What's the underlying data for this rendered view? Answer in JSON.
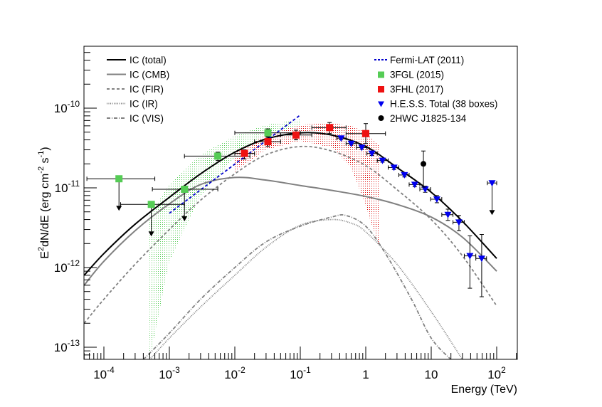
{
  "chart_data": {
    "type": "scatter",
    "title": "",
    "xlabel": "Energy (TeV)",
    "ylabel": "E2dN/dE (erg cm-2 s-1)",
    "ylabel_parts": {
      "base1": "E",
      "sup1": "2",
      "mid": "dN/dE (erg cm",
      "sup2": "-2",
      "mid2": " s",
      "sup3": "-1",
      "end": ")"
    },
    "xscale": "log",
    "yscale": "log",
    "xlim": [
      5e-05,
      200
    ],
    "ylim": [
      7e-14,
      6e-10
    ],
    "grid": false,
    "x_ticks": [
      {
        "value": 0.0001,
        "base": "10",
        "exp": "-4"
      },
      {
        "value": 0.001,
        "base": "10",
        "exp": "-3"
      },
      {
        "value": 0.01,
        "base": "10",
        "exp": "-2"
      },
      {
        "value": 0.1,
        "base": "10",
        "exp": "-1"
      },
      {
        "value": 1,
        "base": "1",
        "exp": ""
      },
      {
        "value": 10,
        "base": "10",
        "exp": ""
      },
      {
        "value": 100,
        "base": "10",
        "exp": "2"
      }
    ],
    "y_ticks": [
      {
        "value": 1e-10,
        "base": "10",
        "exp": "-10"
      },
      {
        "value": 1e-11,
        "base": "10",
        "exp": "-11"
      },
      {
        "value": 1e-12,
        "base": "10",
        "exp": "-12"
      },
      {
        "value": 1e-13,
        "base": "10",
        "exp": "-13"
      }
    ],
    "legend_left": [
      {
        "label": "IC (total)",
        "style": "solid",
        "color": "#000000"
      },
      {
        "label": "IC (CMB)",
        "style": "solid",
        "color": "#808080"
      },
      {
        "label": "IC (FIR)",
        "style": "dashed",
        "color": "#808080"
      },
      {
        "label": "IC (IR)",
        "style": "dotted",
        "color": "#808080"
      },
      {
        "label": "IC (VIS)",
        "style": "dashdot",
        "color": "#808080"
      }
    ],
    "legend_right": [
      {
        "label": "Fermi-LAT (2011)",
        "marker": "dashed-line",
        "color": "#0000cc"
      },
      {
        "label": "3FGL (2015)",
        "marker": "square",
        "color": "#55cc55"
      },
      {
        "label": "3FHL (2017)",
        "marker": "square",
        "color": "#ee1111"
      },
      {
        "label": "H.E.S.S. Total (38 boxes)",
        "marker": "triangle-down",
        "color": "#0000ee"
      },
      {
        "label": "2HWC J1825-134",
        "marker": "circle",
        "color": "#000000"
      }
    ],
    "legend_placement": "top",
    "models": [
      {
        "name": "IC (total)",
        "color": "#000000",
        "style": "solid",
        "x": [
          5e-05,
          0.0001,
          0.0003,
          0.001,
          0.003,
          0.01,
          0.03,
          0.1,
          0.3,
          1,
          3,
          10,
          30,
          100
        ],
        "y": [
          8e-13,
          1.5e-12,
          3.5e-12,
          7.6e-12,
          1.5e-11,
          2.8e-11,
          4.1e-11,
          4.9e-11,
          4.6e-11,
          3.3e-11,
          1.8e-11,
          8.8e-12,
          3.8e-12,
          1.3e-12
        ]
      },
      {
        "name": "IC (CMB)",
        "color": "#808080",
        "style": "solid",
        "x": [
          5e-05,
          0.0001,
          0.0003,
          0.001,
          0.003,
          0.01,
          0.03,
          0.1,
          0.3,
          1,
          3,
          10,
          30,
          100
        ],
        "y": [
          6e-13,
          1.2e-12,
          2.9e-12,
          6.3e-12,
          1.1e-11,
          1.35e-11,
          1.25e-11,
          1.07e-11,
          9.3e-12,
          7.8e-12,
          6.2e-12,
          4.3e-12,
          2.4e-12,
          9e-13
        ]
      },
      {
        "name": "IC (FIR)",
        "color": "#808080",
        "style": "dashed",
        "x": [
          5e-05,
          0.0001,
          0.0003,
          0.001,
          0.003,
          0.01,
          0.03,
          0.1,
          0.3,
          1,
          3,
          10,
          30,
          100
        ],
        "y": [
          2e-13,
          4e-13,
          1.1e-12,
          3e-12,
          7e-12,
          1.5e-11,
          2.6e-11,
          3.3e-11,
          2.9e-11,
          1.9e-11,
          9.5e-12,
          4e-12,
          1.4e-12,
          3.3e-13
        ]
      },
      {
        "name": "IC (IR)",
        "color": "#808080",
        "style": "dotted",
        "x": [
          0.0005,
          0.001,
          0.003,
          0.01,
          0.03,
          0.1,
          0.3,
          0.6,
          1,
          3,
          10,
          30
        ],
        "y": [
          7e-14,
          1.3e-13,
          3.2e-13,
          8e-13,
          1.8e-12,
          3.4e-12,
          4e-12,
          3.6e-12,
          2.8e-12,
          1.1e-12,
          2.8e-13,
          7e-14
        ]
      },
      {
        "name": "IC (VIS)",
        "color": "#808080",
        "style": "dashdot",
        "x": [
          0.0004,
          0.001,
          0.003,
          0.01,
          0.03,
          0.1,
          0.3,
          0.5,
          1,
          2,
          5,
          10,
          20
        ],
        "y": [
          7e-14,
          1.5e-13,
          4e-13,
          1e-12,
          2.1e-12,
          3.3e-12,
          4.3e-12,
          4.5e-12,
          3.3e-12,
          1.5e-12,
          4e-13,
          1.3e-13,
          7e-14
        ]
      },
      {
        "name": "Fermi-LAT (2011)",
        "color": "#0000cc",
        "style": "dashed",
        "x": [
          0.001,
          0.1
        ],
        "y": [
          4.8e-12,
          8.2e-11
        ]
      }
    ],
    "bands": [
      {
        "name": "3FGL band",
        "color": "#55cc55",
        "x": [
          0.0005,
          0.001,
          0.003,
          0.01,
          0.03,
          0.1
        ],
        "y_low": [
          7e-14,
          1.2e-12,
          8e-12,
          2.4e-11,
          4e-11,
          5.5e-11
        ],
        "y_high": [
          4.5e-12,
          1.1e-11,
          2.6e-11,
          4.5e-11,
          6.2e-11,
          7.2e-11
        ]
      },
      {
        "name": "3FHL band",
        "color": "#dd0000",
        "x": [
          0.01,
          0.03,
          0.1,
          0.3,
          0.6,
          1,
          1.6
        ],
        "y_low": [
          1.6e-11,
          3e-11,
          3.9e-11,
          3.2e-11,
          1.8e-11,
          6e-12,
          1.8e-12
        ],
        "y_high": [
          2.8e-11,
          4.6e-11,
          6.2e-11,
          6.6e-11,
          6e-11,
          5e-11,
          3.4e-11
        ]
      }
    ],
    "series": [
      {
        "name": "3FGL (2015)",
        "marker": "square",
        "color": "#55cc55",
        "points": [
          {
            "x": 0.00017,
            "y": 1.3e-11,
            "xlo": 5.5e-05,
            "xhi": 0.0006,
            "ul": true
          },
          {
            "x": 0.00053,
            "y": 6.2e-12,
            "xlo": 0.00018,
            "xhi": 0.0017,
            "ul": true
          },
          {
            "x": 0.0017,
            "y": 9.6e-12,
            "xlo": 0.00055,
            "xhi": 0.0055,
            "ul": true
          },
          {
            "x": 0.0055,
            "y": 2.5e-11,
            "xlo": 0.0017,
            "xhi": 0.017,
            "ylo": 2.2e-11,
            "yhi": 2.8e-11
          },
          {
            "x": 0.032,
            "y": 4.9e-11,
            "xlo": 0.01,
            "xhi": 0.1,
            "ylo": 4.4e-11,
            "yhi": 5.5e-11
          }
        ]
      },
      {
        "name": "3FHL (2017)",
        "marker": "square",
        "color": "#ee1111",
        "points": [
          {
            "x": 0.014,
            "y": 2.7e-11,
            "xlo": 0.01,
            "xhi": 0.02,
            "ylo": 2.3e-11,
            "yhi": 3e-11
          },
          {
            "x": 0.032,
            "y": 3.8e-11,
            "xlo": 0.02,
            "xhi": 0.05,
            "ylo": 3.3e-11,
            "yhi": 4.3e-11
          },
          {
            "x": 0.086,
            "y": 4.6e-11,
            "xlo": 0.05,
            "xhi": 0.15,
            "ylo": 4e-11,
            "yhi": 5.3e-11
          },
          {
            "x": 0.28,
            "y": 5.7e-11,
            "xlo": 0.15,
            "xhi": 0.5,
            "ylo": 4.8e-11,
            "yhi": 6.6e-11
          },
          {
            "x": 1.0,
            "y": 4.8e-11,
            "xlo": 0.5,
            "xhi": 2.0,
            "ylo": 3.6e-11,
            "yhi": 6.4e-11
          }
        ]
      },
      {
        "name": "H.E.S.S. Total (38 boxes)",
        "marker": "triangle-down",
        "color": "#0000ee",
        "points": [
          {
            "x": 0.42,
            "y": 4.2e-11,
            "xlo": 0.36,
            "xhi": 0.5,
            "ylo": 4e-11,
            "yhi": 4.4e-11
          },
          {
            "x": 0.6,
            "y": 3.6e-11,
            "xlo": 0.5,
            "xhi": 0.72,
            "ylo": 3.45e-11,
            "yhi": 3.8e-11
          },
          {
            "x": 0.87,
            "y": 3.2e-11,
            "xlo": 0.72,
            "xhi": 1.04,
            "ylo": 3.05e-11,
            "yhi": 3.35e-11
          },
          {
            "x": 1.24,
            "y": 2.7e-11,
            "xlo": 1.04,
            "xhi": 1.5,
            "ylo": 2.55e-11,
            "yhi": 2.85e-11
          },
          {
            "x": 1.8,
            "y": 2.2e-11,
            "xlo": 1.5,
            "xhi": 2.2,
            "ylo": 2.1e-11,
            "yhi": 2.35e-11
          },
          {
            "x": 2.7,
            "y": 1.8e-11,
            "xlo": 2.2,
            "xhi": 3.2,
            "ylo": 1.7e-11,
            "yhi": 1.9e-11
          },
          {
            "x": 3.9,
            "y": 1.45e-11,
            "xlo": 3.2,
            "xhi": 4.6,
            "ylo": 1.37e-11,
            "yhi": 1.55e-11
          },
          {
            "x": 5.6,
            "y": 1.1e-11,
            "xlo": 4.6,
            "xhi": 6.7,
            "ylo": 1.03e-11,
            "yhi": 1.18e-11
          },
          {
            "x": 8.1,
            "y": 9.6e-12,
            "xlo": 6.7,
            "xhi": 9.8,
            "ylo": 8.8e-12,
            "yhi": 1.05e-11
          },
          {
            "x": 12.2,
            "y": 7.2e-12,
            "xlo": 9.8,
            "xhi": 14.5,
            "ylo": 6.5e-12,
            "yhi": 8e-12
          },
          {
            "x": 18.0,
            "y": 4.6e-12,
            "xlo": 14.5,
            "xhi": 21.5,
            "ylo": 3.9e-12,
            "yhi": 5.4e-12
          },
          {
            "x": 26.5,
            "y": 3.7e-12,
            "xlo": 21.5,
            "xhi": 32,
            "ylo": 2.9e-12,
            "yhi": 4.5e-12
          },
          {
            "x": 39,
            "y": 1.4e-12,
            "xlo": 32,
            "xhi": 48,
            "ylo": 5.5e-13,
            "yhi": 2.5e-12
          },
          {
            "x": 59,
            "y": 1.3e-12,
            "xlo": 48,
            "xhi": 70,
            "ylo": 4.3e-13,
            "yhi": 2.6e-12
          },
          {
            "x": 85,
            "y": 1.15e-11,
            "xlo": 72,
            "xhi": 100,
            "ul": true
          }
        ]
      },
      {
        "name": "2HWC J1825-134",
        "marker": "circle",
        "color": "#000000",
        "points": [
          {
            "x": 7.6,
            "y": 2e-11,
            "ylo": 1.02e-11,
            "yhi": 2.9e-11
          }
        ]
      }
    ]
  }
}
